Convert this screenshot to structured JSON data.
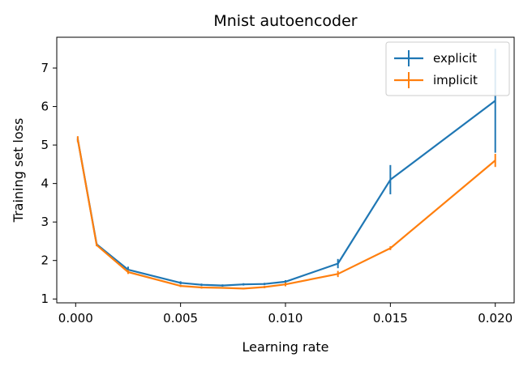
{
  "chart_data": {
    "type": "line",
    "title": "Mnist autoencoder",
    "xlabel": "Learning rate",
    "ylabel": "Training set loss",
    "xlim": [
      -0.0009,
      0.0209
    ],
    "ylim": [
      0.9,
      7.8
    ],
    "xticks": [
      "0.000",
      "0.005",
      "0.010",
      "0.015",
      "0.020"
    ],
    "xtick_values": [
      0.0,
      0.005,
      0.01,
      0.015,
      0.02
    ],
    "yticks": [
      "1",
      "2",
      "3",
      "4",
      "5",
      "6",
      "7"
    ],
    "ytick_values": [
      1,
      2,
      3,
      4,
      5,
      6,
      7
    ],
    "grid": false,
    "legend_position": "top-right",
    "series": [
      {
        "name": "explicit",
        "color": "#1f77b4",
        "x": [
          0.0001,
          0.001,
          0.0025,
          0.005,
          0.006,
          0.007,
          0.008,
          0.009,
          0.01,
          0.0125,
          0.015,
          0.02
        ],
        "y": [
          5.15,
          2.42,
          1.76,
          1.42,
          1.37,
          1.35,
          1.38,
          1.39,
          1.45,
          1.92,
          4.1,
          6.15
        ],
        "yerr": [
          0.05,
          0.04,
          0.08,
          0.04,
          0.03,
          0.03,
          0.03,
          0.03,
          0.04,
          0.12,
          0.38,
          1.35
        ]
      },
      {
        "name": "implicit",
        "color": "#ff7f0e",
        "x": [
          0.0001,
          0.001,
          0.0025,
          0.005,
          0.006,
          0.007,
          0.008,
          0.009,
          0.01,
          0.0125,
          0.015,
          0.02
        ],
        "y": [
          5.15,
          2.4,
          1.7,
          1.34,
          1.3,
          1.29,
          1.27,
          1.31,
          1.38,
          1.65,
          2.32,
          4.6
        ],
        "yerr": [
          0.08,
          0.03,
          0.05,
          0.03,
          0.03,
          0.02,
          0.02,
          0.03,
          0.05,
          0.08,
          0.05,
          0.17
        ]
      }
    ]
  }
}
